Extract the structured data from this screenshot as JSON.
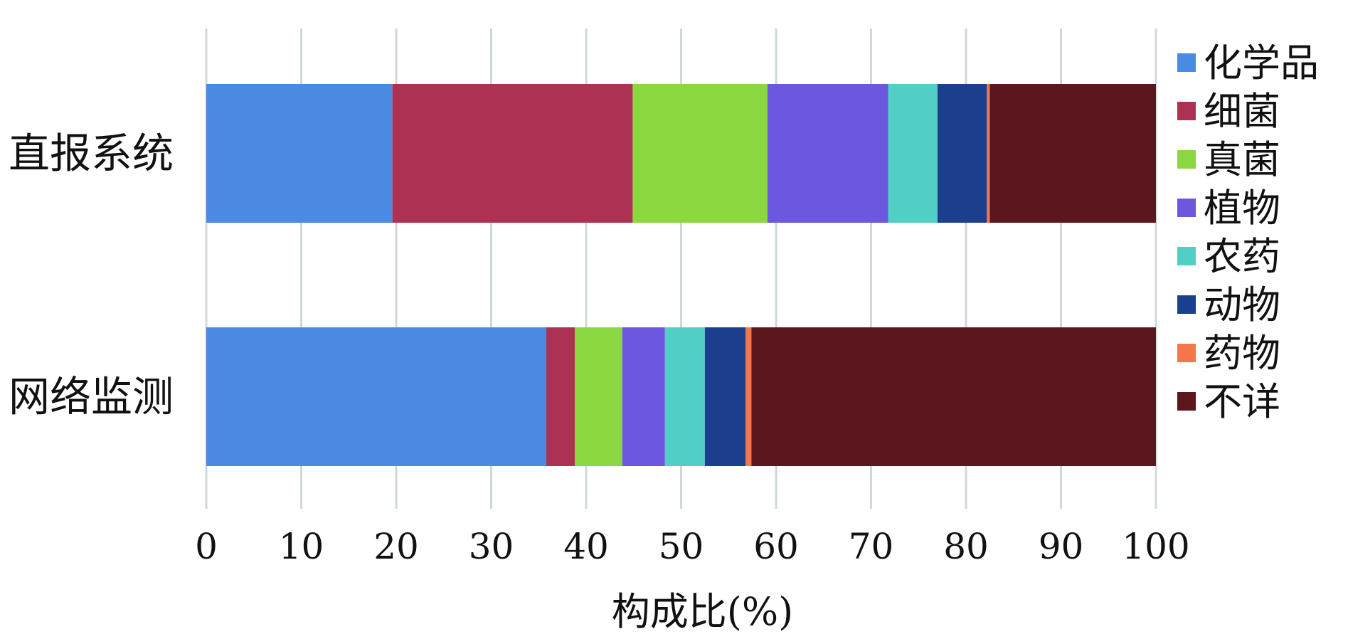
{
  "chart_data": {
    "type": "bar",
    "orientation": "horizontal",
    "stacked": true,
    "categories": [
      "直报系统",
      "网络监测"
    ],
    "series": [
      {
        "name": "化学品",
        "color": "#4A8AE3",
        "values": [
          19.6,
          35.8
        ]
      },
      {
        "name": "细菌",
        "color": "#AD3152",
        "values": [
          25.3,
          3.0
        ]
      },
      {
        "name": "真菌",
        "color": "#8AD73F",
        "values": [
          14.2,
          5.0
        ]
      },
      {
        "name": "植物",
        "color": "#6B58DF",
        "values": [
          12.7,
          4.5
        ]
      },
      {
        "name": "农药",
        "color": "#52CFC5",
        "values": [
          5.2,
          4.2
        ]
      },
      {
        "name": "动物",
        "color": "#1C3F8D",
        "values": [
          5.2,
          4.3
        ]
      },
      {
        "name": "药物",
        "color": "#F5764A",
        "values": [
          0.3,
          0.6
        ]
      },
      {
        "name": "不详",
        "color": "#5C161E",
        "values": [
          17.5,
          42.6
        ]
      }
    ],
    "xlabel": "构成比(%)",
    "ylabel": "",
    "xlim": [
      0,
      100
    ],
    "xticks": [
      0,
      10,
      20,
      30,
      40,
      50,
      60,
      70,
      80,
      90,
      100
    ],
    "grid": true,
    "legend_position": "right"
  }
}
